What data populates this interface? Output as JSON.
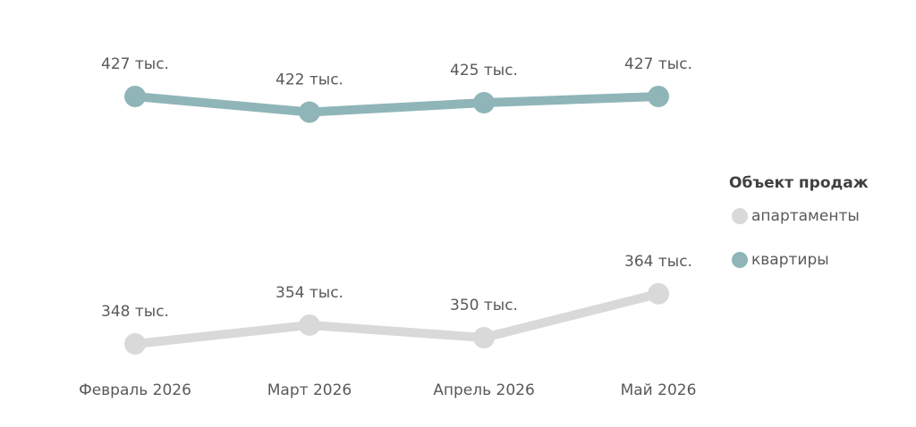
{
  "chart_data": {
    "type": "line",
    "categories": [
      "Февраль 2026",
      "Март 2026",
      "Апрель 2026",
      "Май 2026"
    ],
    "legend_title": "Объект продаж",
    "legend_position": "right",
    "series": [
      {
        "name": "апартаменты",
        "color": "#d9d9d9",
        "values": [
          348,
          354,
          350,
          364
        ],
        "value_labels": [
          "348 тыс.",
          "354 тыс.",
          "350 тыс.",
          "364 тыс."
        ]
      },
      {
        "name": "квартиры",
        "color": "#8fb5b8",
        "values": [
          427,
          422,
          425,
          427
        ],
        "value_labels": [
          "427 тыс.",
          "422 тыс.",
          "425 тыс.",
          "427 тыс."
        ]
      }
    ]
  }
}
